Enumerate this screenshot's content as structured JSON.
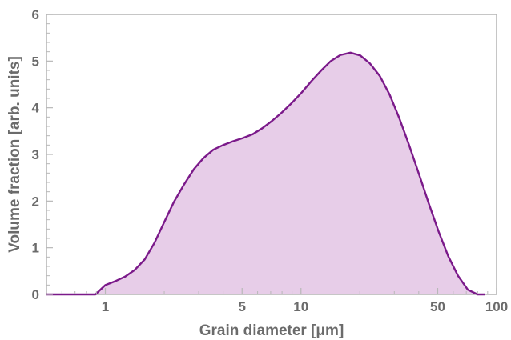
{
  "chart_data": {
    "type": "area",
    "title": "",
    "xlabel": "Grain diameter [μm]",
    "ylabel": "Volume fraction [arb. units]",
    "x_scale": "log",
    "xlim": [
      0.5,
      100
    ],
    "ylim": [
      0,
      6
    ],
    "x_ticks": [
      {
        "value": 1,
        "label": "1"
      },
      {
        "value": 5,
        "label": "5"
      },
      {
        "value": 10,
        "label": "10"
      },
      {
        "value": 50,
        "label": "50"
      },
      {
        "value": 100,
        "label": "100"
      }
    ],
    "x_minor_ticks": [
      0.6,
      0.7,
      0.8,
      0.9,
      2,
      3,
      4,
      6,
      7,
      8,
      9,
      20,
      30,
      40,
      60,
      70,
      80,
      90
    ],
    "y_ticks": [
      {
        "value": 0,
        "label": "0"
      },
      {
        "value": 1,
        "label": "1"
      },
      {
        "value": 2,
        "label": "2"
      },
      {
        "value": 3,
        "label": "3"
      },
      {
        "value": 4,
        "label": "4"
      },
      {
        "value": 5,
        "label": "5"
      },
      {
        "value": 6,
        "label": "6"
      }
    ],
    "grid": false,
    "legend": "none",
    "line_color": "#7b1a8a",
    "fill_color": "#e7cde8",
    "frame_color": "#b8b8b8",
    "series": [
      {
        "x": [
          0.5,
          0.89,
          1.0,
          1.12,
          1.26,
          1.41,
          1.59,
          1.78,
          2.0,
          2.24,
          2.52,
          2.83,
          3.17,
          3.56,
          4.0,
          4.49,
          5.04,
          5.65,
          6.34,
          7.12,
          7.99,
          8.96,
          10.1,
          11.3,
          12.7,
          14.2,
          15.9,
          17.9,
          20.1,
          22.5,
          25.3,
          28.4,
          31.8,
          35.7,
          40.1,
          45.0,
          50.5,
          56.6,
          63.5,
          71.3,
          80.0,
          87.0
        ],
        "y": [
          0,
          0,
          0.2,
          0.28,
          0.38,
          0.52,
          0.75,
          1.1,
          1.55,
          1.98,
          2.35,
          2.68,
          2.92,
          3.1,
          3.2,
          3.28,
          3.35,
          3.43,
          3.56,
          3.72,
          3.9,
          4.1,
          4.33,
          4.57,
          4.8,
          5.0,
          5.13,
          5.18,
          5.12,
          4.95,
          4.68,
          4.28,
          3.78,
          3.2,
          2.58,
          1.95,
          1.35,
          0.82,
          0.4,
          0.1,
          0,
          0
        ]
      }
    ]
  }
}
